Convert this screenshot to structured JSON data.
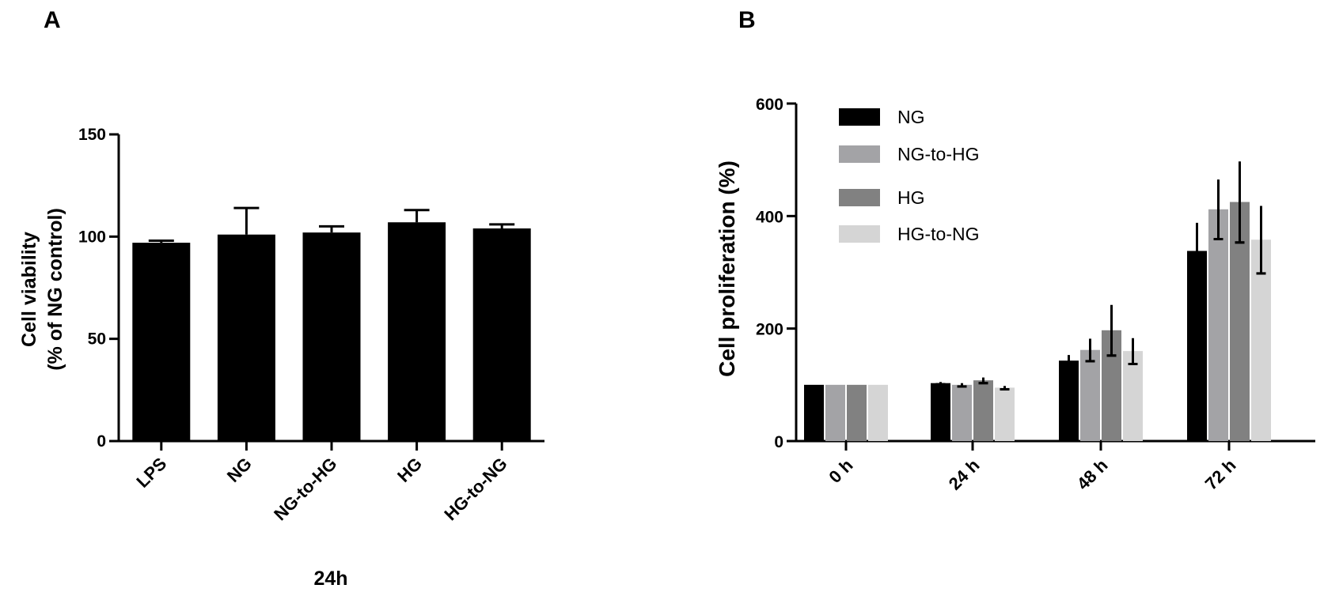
{
  "chart_data": [
    {
      "panel": "A",
      "type": "bar",
      "categories": [
        "LPS",
        "NG",
        "NG-to-HG",
        "HG",
        "HG-to-NG"
      ],
      "values": [
        97,
        101,
        102,
        107,
        104
      ],
      "errors": [
        1,
        13,
        3,
        6,
        2
      ],
      "xlabel": "24h",
      "ylabel": [
        "Cell viability",
        "(% of NG control)"
      ],
      "ylim": [
        0,
        150
      ],
      "yticks": [
        0,
        50,
        100,
        150
      ],
      "color": "#000000",
      "grid": false
    },
    {
      "panel": "B",
      "type": "bar",
      "categories": [
        "0 h",
        "24 h",
        "48 h",
        "72 h"
      ],
      "series": [
        {
          "name": "NG",
          "color": "#000000",
          "values": [
            100,
            103,
            143,
            338
          ],
          "errors": [
            0,
            2,
            10,
            50
          ]
        },
        {
          "name": "NG-to-HG",
          "color": "#a3a3a6",
          "values": [
            100,
            100,
            162,
            412
          ],
          "errors": [
            0,
            3,
            20,
            53
          ]
        },
        {
          "name": "HG",
          "color": "#818181",
          "values": [
            100,
            108,
            197,
            425
          ],
          "errors": [
            0,
            5,
            45,
            72
          ]
        },
        {
          "name": "HG-to-NG",
          "color": "#d5d5d5",
          "values": [
            100,
            95,
            160,
            358
          ],
          "errors": [
            0,
            3,
            23,
            60
          ]
        }
      ],
      "ylabel": "Cell proliferation (%)",
      "ylim": [
        0,
        600
      ],
      "yticks": [
        0,
        200,
        400,
        600
      ],
      "legend_position": "top-left",
      "grid": false
    }
  ]
}
